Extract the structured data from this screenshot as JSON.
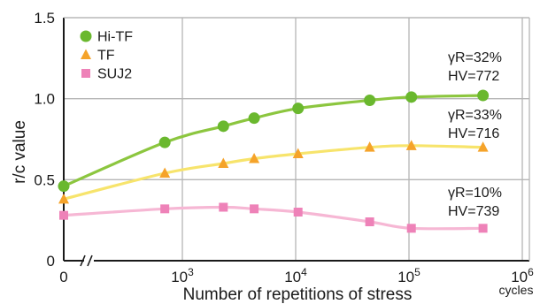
{
  "chart_data": {
    "type": "line",
    "xlabel": "Number of repetitions of stress",
    "xunit": "cycles",
    "ylabel": "r/c value",
    "x_scale": "log",
    "x_axis_break": true,
    "xlim": [
      0,
      1000000
    ],
    "ylim": [
      0,
      1.5
    ],
    "grid": true,
    "legend_position": "top-left",
    "y_ticks": [
      "0",
      "0.5",
      "1.0",
      "1.5"
    ],
    "x_ticks": [
      {
        "value": 0,
        "base": "0",
        "exp": ""
      },
      {
        "value": 1000,
        "base": "10",
        "exp": "3"
      },
      {
        "value": 10000,
        "base": "10",
        "exp": "4"
      },
      {
        "value": 100000,
        "base": "10",
        "exp": "5"
      },
      {
        "value": 1000000,
        "base": "10",
        "exp": "6"
      }
    ],
    "series": [
      {
        "name": "Hi-TF",
        "marker": "circle",
        "marker_color": "#6ab82e",
        "line_color": "#8cc63f",
        "x": [
          0,
          700,
          2300,
          4300,
          10500,
          45000,
          105000,
          450000
        ],
        "y": [
          0.46,
          0.73,
          0.83,
          0.88,
          0.94,
          0.99,
          1.01,
          1.02
        ]
      },
      {
        "name": "TF",
        "marker": "triangle",
        "marker_color": "#f5a32a",
        "line_color": "#f7e46c",
        "x": [
          0,
          700,
          2300,
          4300,
          10500,
          45000,
          105000,
          450000
        ],
        "y": [
          0.38,
          0.54,
          0.6,
          0.63,
          0.66,
          0.7,
          0.71,
          0.7
        ]
      },
      {
        "name": "SUJ2",
        "marker": "square",
        "marker_color": "#ee82b8",
        "line_color": "#f6b7d4",
        "x": [
          0,
          700,
          2300,
          4300,
          10500,
          45000,
          105000,
          450000
        ],
        "y": [
          0.28,
          0.32,
          0.33,
          0.32,
          0.3,
          0.24,
          0.2,
          0.2
        ]
      }
    ],
    "annotations": [
      {
        "series": "Hi-TF",
        "gamma": "γR=32%",
        "hv": "HV=772"
      },
      {
        "series": "TF",
        "gamma": "γR=33%",
        "hv": "HV=716"
      },
      {
        "series": "SUJ2",
        "gamma": "γR=10%",
        "hv": "HV=739"
      }
    ]
  }
}
